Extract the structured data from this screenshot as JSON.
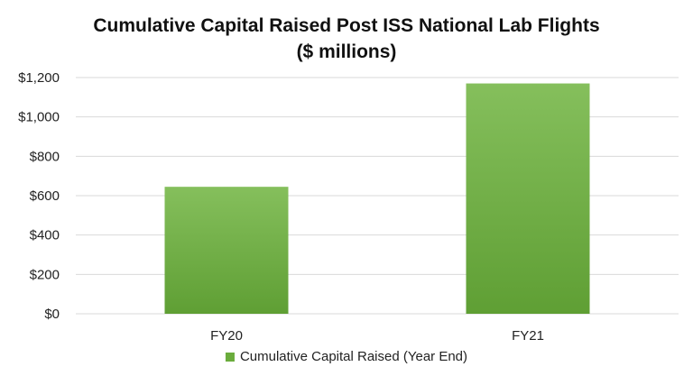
{
  "chart_data": {
    "type": "bar",
    "title": "Cumulative Capital Raised Post ISS National Lab Flights",
    "subtitle": "($ millions)",
    "categories": [
      "FY20",
      "FY21"
    ],
    "series": [
      {
        "name": "Cumulative Capital Raised (Year End)",
        "values": [
          645,
          1170
        ],
        "color": "#6aac3c"
      }
    ],
    "ylim": [
      0,
      1200
    ],
    "yticks": [
      0,
      200,
      400,
      600,
      800,
      1000,
      1200
    ],
    "ytick_labels": [
      "$0",
      "$200",
      "$400",
      "$600",
      "$800",
      "$1,000",
      "$1,200"
    ],
    "xlabel": "",
    "ylabel": "",
    "grid": true,
    "legend_position": "bottom",
    "colors": {
      "bar_top": "#85bf5c",
      "bar_bottom": "#5f9f34",
      "grid": "#d9d9d9"
    }
  }
}
